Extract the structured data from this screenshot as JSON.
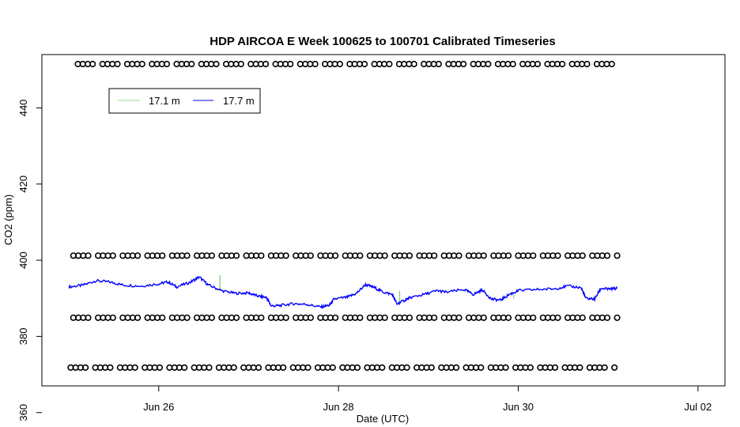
{
  "chart_data": {
    "type": "line",
    "title": "HDP AIRCOA E  Week 100625 to 100701  Calibrated Timeseries",
    "xlabel": "Date (UTC)",
    "ylabel": "CO2 (ppm)",
    "x_tick_labels": [
      "Jun 26",
      "Jun 28",
      "Jun 30",
      "Jul 02"
    ],
    "x_ticks_days": [
      26,
      28,
      30,
      32
    ],
    "y_ticks": [
      360,
      380,
      400,
      420,
      440
    ],
    "xlim_days": [
      24.7,
      32.3
    ],
    "ylim": [
      367,
      454
    ],
    "legend_position": "top-left",
    "series": [
      {
        "name": "17.1 m",
        "color": "#00a000",
        "line_style": "dotted",
        "points": [
          [
            26.68,
            393
          ],
          [
            26.68,
            396
          ],
          [
            26.68,
            392
          ],
          [
            28.68,
            390
          ],
          [
            28.68,
            392
          ],
          [
            28.68,
            389
          ],
          [
            29.95,
            390
          ],
          [
            29.95,
            391.5
          ],
          [
            29.95,
            390.3
          ],
          [
            25.35,
            395.5
          ],
          [
            27.85,
            388.5
          ],
          [
            30.7,
            392.2
          ]
        ]
      },
      {
        "name": "17.7 m",
        "color": "#0000ff",
        "points": [
          [
            25.0,
            393.0
          ],
          [
            25.15,
            393.4
          ],
          [
            25.3,
            394.6
          ],
          [
            25.45,
            394.3
          ],
          [
            25.6,
            393.5
          ],
          [
            25.8,
            393.2
          ],
          [
            26.0,
            393.8
          ],
          [
            26.1,
            394.3
          ],
          [
            26.2,
            393.0
          ],
          [
            26.35,
            394.2
          ],
          [
            26.45,
            395.6
          ],
          [
            26.55,
            393.5
          ],
          [
            26.7,
            392.0
          ],
          [
            26.85,
            391.3
          ],
          [
            27.0,
            391.4
          ],
          [
            27.1,
            390.6
          ],
          [
            27.2,
            390.2
          ],
          [
            27.25,
            388.0
          ],
          [
            27.35,
            388.1
          ],
          [
            27.5,
            388.6
          ],
          [
            27.65,
            388.4
          ],
          [
            27.8,
            387.7
          ],
          [
            27.9,
            388.2
          ],
          [
            27.95,
            389.8
          ],
          [
            28.1,
            390.3
          ],
          [
            28.2,
            391.3
          ],
          [
            28.3,
            393.6
          ],
          [
            28.4,
            392.8
          ],
          [
            28.5,
            391.6
          ],
          [
            28.6,
            391.0
          ],
          [
            28.65,
            388.5
          ],
          [
            28.75,
            389.6
          ],
          [
            28.8,
            390.2
          ],
          [
            28.95,
            391.0
          ],
          [
            29.1,
            392.0
          ],
          [
            29.2,
            391.6
          ],
          [
            29.4,
            392.3
          ],
          [
            29.5,
            391.0
          ],
          [
            29.6,
            392.2
          ],
          [
            29.7,
            389.8
          ],
          [
            29.8,
            389.5
          ],
          [
            29.9,
            391.0
          ],
          [
            30.0,
            392.0
          ],
          [
            30.2,
            392.3
          ],
          [
            30.4,
            392.5
          ],
          [
            30.55,
            393.2
          ],
          [
            30.7,
            392.8
          ],
          [
            30.75,
            390.0
          ],
          [
            30.85,
            389.8
          ],
          [
            30.92,
            392.6
          ],
          [
            31.0,
            392.4
          ],
          [
            31.1,
            392.6
          ]
        ]
      }
    ],
    "marker_rows": [
      {
        "y": 451.5,
        "x_start": 25.1,
        "x_end": 31.1
      },
      {
        "y": 401.2,
        "x_start": 25.05,
        "x_end": 31.1
      },
      {
        "y": 384.9,
        "x_start": 25.05,
        "x_end": 31.1
      },
      {
        "y": 371.8,
        "x_start": 25.02,
        "x_end": 31.1
      }
    ]
  }
}
